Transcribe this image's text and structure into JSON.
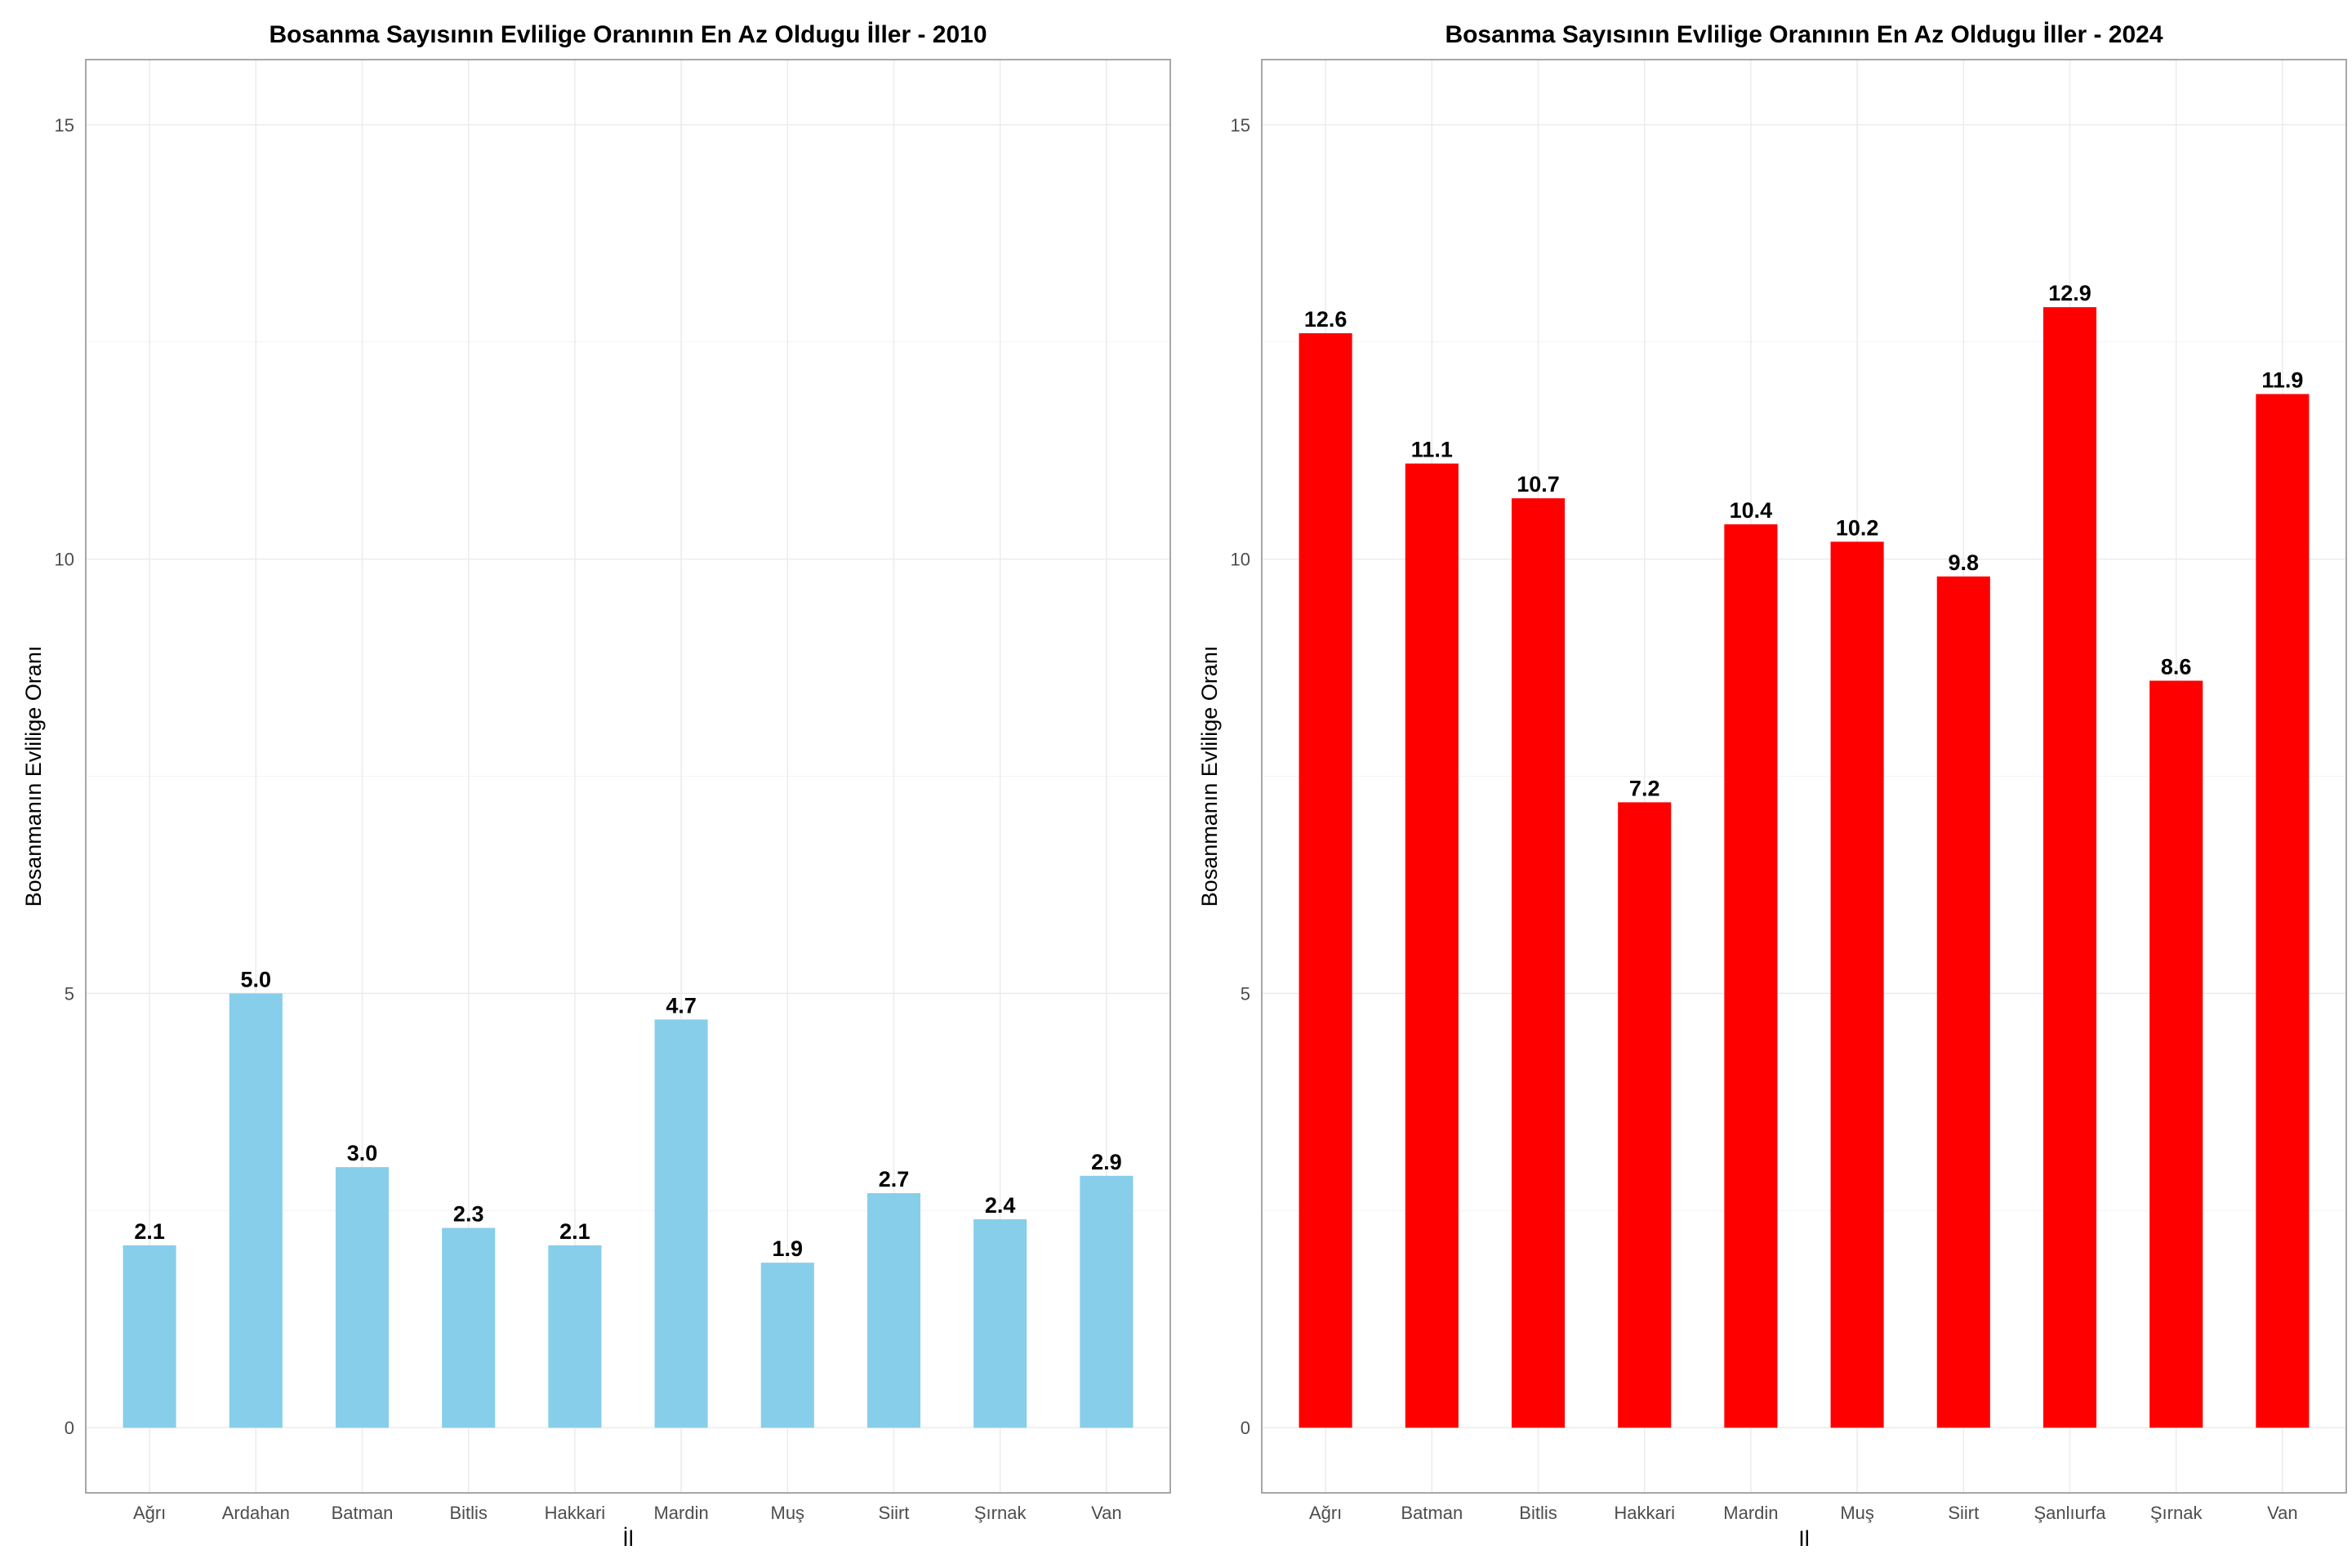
{
  "chart_data": [
    {
      "type": "bar",
      "title": "Bosanma Sayısının Evlilige Oranının En Az Oldugu İller - 2010",
      "xlabel": "İl",
      "ylabel": "Bosanmanın Evlilige Oranı",
      "categories": [
        "Ağrı",
        "Ardahan",
        "Batman",
        "Bitlis",
        "Hakkari",
        "Mardin",
        "Muş",
        "Siirt",
        "Şırnak",
        "Van"
      ],
      "values": [
        2.1,
        5.0,
        3.0,
        2.3,
        2.1,
        4.7,
        1.9,
        2.7,
        2.4,
        2.9
      ],
      "value_labels": [
        "2.1",
        "5.0",
        "3.0",
        "2.3",
        "2.1",
        "4.7",
        "1.9",
        "2.7",
        "2.4",
        "2.9"
      ],
      "ylim": [
        -0.75,
        15.75
      ],
      "yticks": [
        0,
        5,
        10,
        15
      ],
      "color": "#87CEEB",
      "grid": true,
      "legend": "none"
    },
    {
      "type": "bar",
      "title": "Bosanma Sayısının Evlilige Oranının En Az Oldugu İller - 2024",
      "xlabel": "Il",
      "ylabel": "Bosanmanın Evlilige Oranı",
      "categories": [
        "Ağrı",
        "Batman",
        "Bitlis",
        "Hakkari",
        "Mardin",
        "Muş",
        "Siirt",
        "Şanlıurfa",
        "Şırnak",
        "Van"
      ],
      "values": [
        12.6,
        11.1,
        10.7,
        7.2,
        10.4,
        10.2,
        9.8,
        12.9,
        8.6,
        11.9
      ],
      "value_labels": [
        "12.6",
        "11.1",
        "10.7",
        "7.2",
        "10.4",
        "10.2",
        "9.8",
        "12.9",
        "8.6",
        "11.9"
      ],
      "ylim": [
        -0.75,
        15.75
      ],
      "yticks": [
        0,
        5,
        10,
        15
      ],
      "color": "#FF0000",
      "grid": true,
      "legend": "none"
    }
  ]
}
